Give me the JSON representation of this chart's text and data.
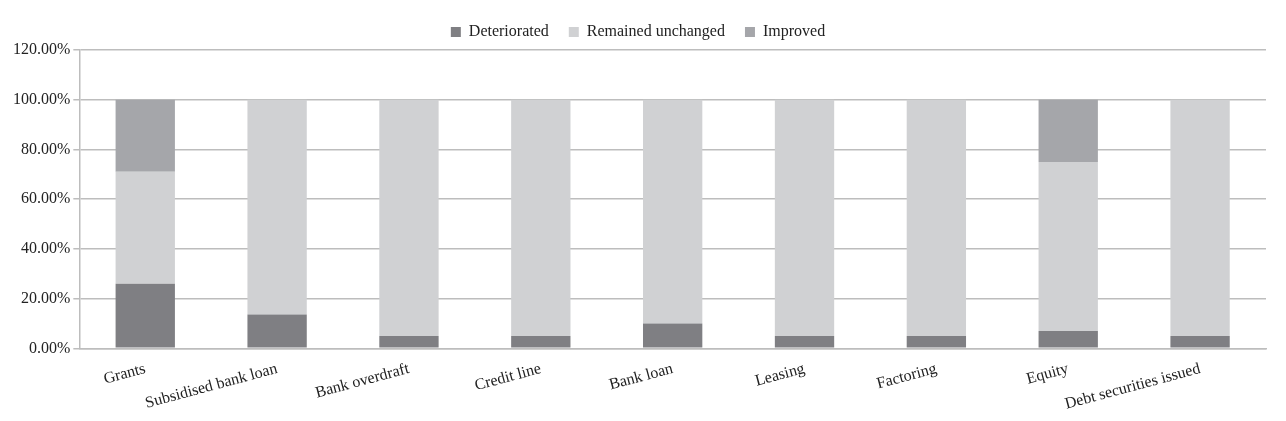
{
  "chart_data": {
    "type": "bar",
    "stacked": true,
    "categories": [
      "Grants",
      "Subsidised bank loan",
      "Bank overdraft",
      "Credit line",
      "Bank loan",
      "Leasing",
      "Factoring",
      "Equity",
      "Debt securities issued"
    ],
    "series": [
      {
        "name": "Deteriorated",
        "color": "#7f7f83",
        "values": [
          26,
          13.6,
          5,
          5,
          10,
          5,
          5,
          7,
          5
        ]
      },
      {
        "name": "Remained unchanged",
        "color": "#d0d1d3",
        "values": [
          45,
          86.4,
          95,
          95,
          90,
          95,
          95,
          68,
          95
        ]
      },
      {
        "name": "Improved",
        "color": "#a5a6aa",
        "values": [
          29,
          0,
          0,
          0,
          0,
          0,
          0,
          25,
          0
        ]
      }
    ],
    "ylim": [
      0,
      120
    ],
    "yticks": [
      {
        "value": 0,
        "label": "0.00%"
      },
      {
        "value": 20,
        "label": "20.00%"
      },
      {
        "value": 40,
        "label": "40.00%"
      },
      {
        "value": 60,
        "label": "60.00%"
      },
      {
        "value": 80,
        "label": "80.00%"
      },
      {
        "value": 100,
        "label": "100.00%"
      },
      {
        "value": 120,
        "label": "120.00%"
      }
    ],
    "grid": "y",
    "legend": "top"
  }
}
